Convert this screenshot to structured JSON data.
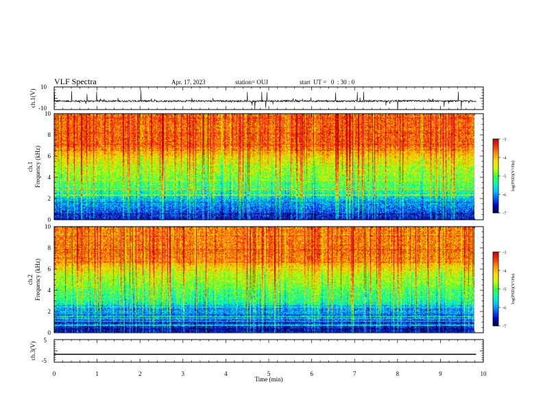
{
  "header": {
    "title": "VLF Spectra",
    "date": "Apr. 17, 2023",
    "station": "station= OUJ",
    "start": "start  UT =   0  : 30 : 0"
  },
  "chart_data": [
    {
      "type": "line",
      "ylabel": "ch.1(V)",
      "ylim": [
        -10,
        10
      ],
      "y_tick_labels": [
        "10",
        "-10"
      ],
      "x_range_min": [
        0,
        9.83
      ],
      "baseline_v": -2.5,
      "description_color": "#000000"
    },
    {
      "type": "heatmap",
      "ylabel_channel": "ch.1",
      "ylabel": "Frequency  (kHz)",
      "ylim": [
        0,
        10
      ],
      "y_tick_labels": [
        "0",
        "2",
        "4",
        "6",
        "8",
        "10"
      ],
      "x_range_min": [
        0,
        9.83
      ],
      "colorbar": {
        "label": "log(PSD)(V²/Hz)",
        "range": [
          -7,
          -3
        ],
        "tick_labels": [
          "-3",
          "-4",
          "-5",
          "-6",
          "-7"
        ]
      }
    },
    {
      "type": "heatmap",
      "ylabel_channel": "ch.2",
      "ylabel": "Frequency  (kHz)",
      "ylim": [
        0,
        10
      ],
      "y_tick_labels": [
        "0",
        "2",
        "4",
        "6",
        "8",
        "10"
      ],
      "x_range_min": [
        0,
        9.83
      ],
      "colorbar": {
        "label": "log(PSD)(V²/Hz)",
        "range": [
          -7,
          -3
        ],
        "tick_labels": [
          "-3",
          "-4",
          "-5",
          "-6",
          "-7"
        ]
      }
    },
    {
      "type": "line",
      "ylabel": "ch.3(V)",
      "ylim": [
        -5,
        5
      ],
      "y_tick_labels": [
        "5",
        "-5"
      ],
      "x_range_min": [
        0,
        9.83
      ],
      "constant_value_v": -1.5
    }
  ],
  "x_axis": {
    "label": "Time  (min)",
    "range": [
      0,
      10
    ],
    "tick_labels": [
      "0",
      "1",
      "2",
      "3",
      "4",
      "5",
      "6",
      "7",
      "8",
      "9",
      "10"
    ]
  },
  "colormap": [
    "#00003c",
    "#0000c8",
    "#0064ff",
    "#00c8ff",
    "#00ffb4",
    "#3cff3c",
    "#c8ff00",
    "#ffdc00",
    "#ff9600",
    "#ff3200",
    "#c80000"
  ]
}
